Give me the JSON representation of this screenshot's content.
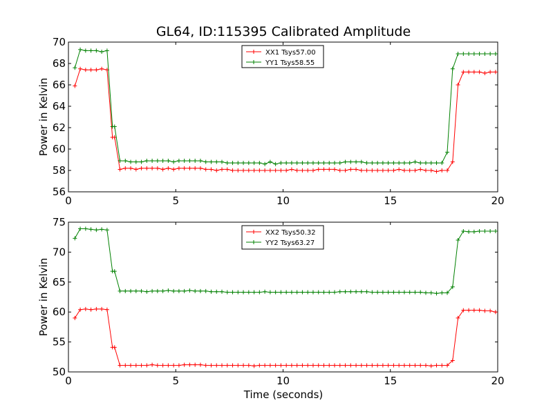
{
  "title": "GL64, ID:115395 Calibrated Amplitude",
  "colors": {
    "red": "#ff0000",
    "green": "#008000"
  },
  "chart_data": [
    {
      "type": "line",
      "title": "GL64, ID:115395 Calibrated Amplitude",
      "xlabel": "",
      "ylabel": "Power in Kelvin",
      "xlim": [
        0,
        20
      ],
      "ylim": [
        56,
        70
      ],
      "xticks": [
        "0",
        "5",
        "10",
        "15",
        "20"
      ],
      "yticks": [
        "56",
        "58",
        "60",
        "62",
        "64",
        "66",
        "68",
        "70"
      ],
      "grid": false,
      "legend": "upper center",
      "x": [
        0.3,
        0.55,
        0.8,
        1.05,
        1.3,
        1.55,
        1.8,
        2.05,
        2.15,
        2.4,
        2.65,
        2.9,
        3.15,
        3.4,
        3.65,
        3.9,
        4.15,
        4.4,
        4.65,
        4.9,
        5.15,
        5.4,
        5.65,
        5.9,
        6.15,
        6.4,
        6.65,
        6.9,
        7.15,
        7.4,
        7.65,
        7.9,
        8.15,
        8.4,
        8.65,
        8.9,
        9.15,
        9.4,
        9.65,
        9.9,
        10.15,
        10.4,
        10.65,
        10.9,
        11.15,
        11.4,
        11.65,
        11.9,
        12.15,
        12.4,
        12.65,
        12.9,
        13.15,
        13.4,
        13.65,
        13.9,
        14.15,
        14.4,
        14.65,
        14.9,
        15.15,
        15.4,
        15.65,
        15.9,
        16.15,
        16.4,
        16.65,
        16.9,
        17.15,
        17.4,
        17.65,
        17.9,
        18.15,
        18.4,
        18.65,
        18.9,
        19.15,
        19.4,
        19.65,
        19.9
      ],
      "series": [
        {
          "name": "XX1 Tsys57.00",
          "color": "#ff0000",
          "values": [
            65.9,
            67.5,
            67.4,
            67.4,
            67.4,
            67.5,
            67.4,
            61.1,
            61.1,
            58.1,
            58.2,
            58.2,
            58.1,
            58.2,
            58.2,
            58.2,
            58.2,
            58.1,
            58.2,
            58.1,
            58.2,
            58.2,
            58.2,
            58.2,
            58.2,
            58.1,
            58.1,
            58.0,
            58.1,
            58.1,
            58.0,
            58.0,
            58.0,
            58.0,
            58.0,
            58.0,
            58.0,
            58.0,
            58.0,
            58.0,
            58.0,
            58.1,
            58.0,
            58.0,
            58.0,
            58.0,
            58.1,
            58.1,
            58.1,
            58.1,
            58.0,
            58.0,
            58.1,
            58.1,
            58.0,
            58.0,
            58.0,
            58.0,
            58.0,
            58.0,
            58.0,
            58.1,
            58.0,
            58.0,
            58.0,
            58.1,
            58.0,
            58.0,
            57.9,
            58.0,
            58.0,
            58.8,
            66.0,
            67.2,
            67.2,
            67.2,
            67.2,
            67.1,
            67.2,
            67.2
          ]
        },
        {
          "name": "YY1 Tsys58.55",
          "color": "#008000",
          "values": [
            67.6,
            69.3,
            69.2,
            69.2,
            69.2,
            69.1,
            69.2,
            62.1,
            62.1,
            58.9,
            58.9,
            58.8,
            58.8,
            58.8,
            58.9,
            58.9,
            58.9,
            58.9,
            58.9,
            58.8,
            58.9,
            58.9,
            58.9,
            58.9,
            58.9,
            58.8,
            58.8,
            58.8,
            58.8,
            58.7,
            58.7,
            58.7,
            58.7,
            58.7,
            58.7,
            58.7,
            58.6,
            58.8,
            58.6,
            58.7,
            58.7,
            58.7,
            58.7,
            58.7,
            58.7,
            58.7,
            58.7,
            58.7,
            58.7,
            58.7,
            58.7,
            58.8,
            58.8,
            58.8,
            58.8,
            58.7,
            58.7,
            58.7,
            58.7,
            58.7,
            58.7,
            58.7,
            58.7,
            58.7,
            58.8,
            58.7,
            58.7,
            58.7,
            58.7,
            58.7,
            59.7,
            67.5,
            68.9,
            68.9,
            68.9,
            68.9,
            68.9,
            68.9,
            68.9,
            68.9
          ]
        }
      ]
    },
    {
      "type": "line",
      "title": "",
      "xlabel": "Time (seconds)",
      "ylabel": "Power in Kelvin",
      "xlim": [
        0,
        20
      ],
      "ylim": [
        50,
        75
      ],
      "xticks": [
        "0",
        "5",
        "10",
        "15",
        "20"
      ],
      "yticks": [
        "50",
        "55",
        "60",
        "65",
        "70",
        "75"
      ],
      "grid": false,
      "legend": "upper center",
      "x": [
        0.3,
        0.55,
        0.8,
        1.05,
        1.3,
        1.55,
        1.8,
        2.05,
        2.15,
        2.4,
        2.65,
        2.9,
        3.15,
        3.4,
        3.65,
        3.9,
        4.15,
        4.4,
        4.65,
        4.9,
        5.15,
        5.4,
        5.65,
        5.9,
        6.15,
        6.4,
        6.65,
        6.9,
        7.15,
        7.4,
        7.65,
        7.9,
        8.15,
        8.4,
        8.65,
        8.9,
        9.15,
        9.4,
        9.65,
        9.9,
        10.15,
        10.4,
        10.65,
        10.9,
        11.15,
        11.4,
        11.65,
        11.9,
        12.15,
        12.4,
        12.65,
        12.9,
        13.15,
        13.4,
        13.65,
        13.9,
        14.15,
        14.4,
        14.65,
        14.9,
        15.15,
        15.4,
        15.65,
        15.9,
        16.15,
        16.4,
        16.65,
        16.9,
        17.15,
        17.4,
        17.65,
        17.9,
        18.15,
        18.4,
        18.65,
        18.9,
        19.15,
        19.4,
        19.65,
        19.9
      ],
      "series": [
        {
          "name": "XX2 Tsys50.32",
          "color": "#ff0000",
          "values": [
            59.0,
            60.4,
            60.5,
            60.4,
            60.5,
            60.5,
            60.4,
            54.1,
            54.1,
            51.1,
            51.1,
            51.1,
            51.1,
            51.1,
            51.1,
            51.2,
            51.1,
            51.1,
            51.1,
            51.1,
            51.1,
            51.2,
            51.2,
            51.2,
            51.2,
            51.1,
            51.1,
            51.1,
            51.1,
            51.1,
            51.1,
            51.1,
            51.1,
            51.1,
            51.0,
            51.1,
            51.1,
            51.1,
            51.1,
            51.1,
            51.1,
            51.1,
            51.1,
            51.1,
            51.1,
            51.1,
            51.1,
            51.1,
            51.1,
            51.1,
            51.1,
            51.1,
            51.1,
            51.1,
            51.1,
            51.1,
            51.1,
            51.1,
            51.1,
            51.1,
            51.1,
            51.1,
            51.1,
            51.1,
            51.1,
            51.1,
            51.1,
            51.0,
            51.1,
            51.1,
            51.1,
            51.9,
            59.0,
            60.3,
            60.3,
            60.3,
            60.3,
            60.2,
            60.2,
            60.0
          ]
        },
        {
          "name": "YY2 Tsys63.27",
          "color": "#008000",
          "values": [
            72.3,
            73.9,
            73.9,
            73.8,
            73.7,
            73.8,
            73.7,
            66.8,
            66.8,
            63.5,
            63.5,
            63.5,
            63.5,
            63.5,
            63.4,
            63.5,
            63.5,
            63.5,
            63.6,
            63.5,
            63.5,
            63.5,
            63.6,
            63.5,
            63.5,
            63.5,
            63.4,
            63.4,
            63.4,
            63.3,
            63.3,
            63.3,
            63.3,
            63.3,
            63.3,
            63.3,
            63.4,
            63.3,
            63.3,
            63.3,
            63.3,
            63.3,
            63.3,
            63.3,
            63.3,
            63.3,
            63.3,
            63.3,
            63.3,
            63.3,
            63.4,
            63.4,
            63.4,
            63.4,
            63.4,
            63.4,
            63.3,
            63.3,
            63.3,
            63.3,
            63.3,
            63.3,
            63.3,
            63.3,
            63.3,
            63.3,
            63.2,
            63.2,
            63.1,
            63.2,
            63.2,
            64.2,
            72.0,
            73.5,
            73.4,
            73.4,
            73.5,
            73.5,
            73.5,
            73.5
          ]
        }
      ]
    }
  ]
}
